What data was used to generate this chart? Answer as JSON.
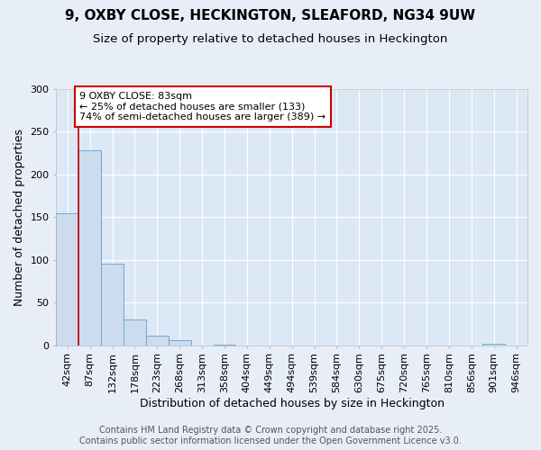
{
  "title_line1": "9, OXBY CLOSE, HECKINGTON, SLEAFORD, NG34 9UW",
  "title_line2": "Size of property relative to detached houses in Heckington",
  "xlabel": "Distribution of detached houses by size in Heckington",
  "ylabel": "Number of detached properties",
  "categories": [
    "42sqm",
    "87sqm",
    "132sqm",
    "178sqm",
    "223sqm",
    "268sqm",
    "313sqm",
    "358sqm",
    "404sqm",
    "449sqm",
    "494sqm",
    "539sqm",
    "584sqm",
    "630sqm",
    "675sqm",
    "720sqm",
    "765sqm",
    "810sqm",
    "856sqm",
    "901sqm",
    "946sqm"
  ],
  "values": [
    155,
    228,
    96,
    30,
    11,
    6,
    0,
    1,
    0,
    0,
    0,
    0,
    0,
    0,
    0,
    0,
    0,
    0,
    0,
    2,
    0
  ],
  "bar_color": "#ccdcee",
  "bar_edge_color": "#6aaad4",
  "vline_x_index": 1,
  "vline_color": "#cc0000",
  "annotation_text": "9 OXBY CLOSE: 83sqm\n← 25% of detached houses are smaller (133)\n74% of semi-detached houses are larger (389) →",
  "annotation_box_color": "#ffffff",
  "annotation_box_edge": "#cc0000",
  "ylim": [
    0,
    300
  ],
  "yticks": [
    0,
    50,
    100,
    150,
    200,
    250,
    300
  ],
  "fig_background_color": "#e8eef8",
  "plot_background_color": "#dce8f5",
  "grid_color": "#ffffff",
  "footer_line1": "Contains HM Land Registry data © Crown copyright and database right 2025.",
  "footer_line2": "Contains public sector information licensed under the Open Government Licence v3.0.",
  "title_fontsize": 11,
  "subtitle_fontsize": 9.5,
  "axis_label_fontsize": 9,
  "tick_fontsize": 8,
  "annotation_fontsize": 8,
  "footer_fontsize": 7
}
